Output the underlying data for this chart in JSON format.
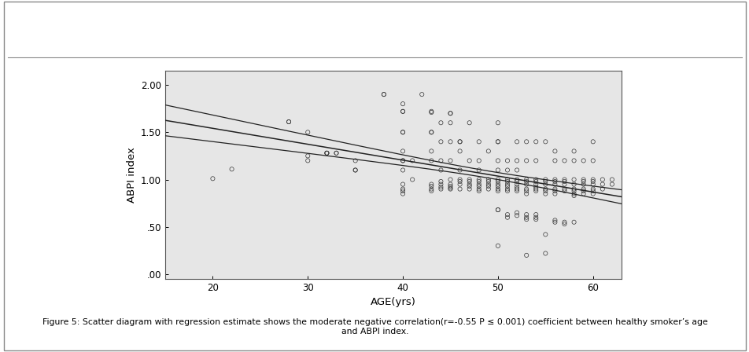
{
  "title": "",
  "xlabel": "AGE(yrs)",
  "ylabel": "ABPI index",
  "xlim": [
    15,
    63
  ],
  "ylim": [
    -0.05,
    2.15
  ],
  "xticks": [
    20,
    30,
    40,
    50,
    60
  ],
  "yticks": [
    0.0,
    0.5,
    1.0,
    1.5,
    2.0
  ],
  "ytick_labels": [
    ".00",
    ".50",
    "1.00",
    "1.50",
    "2.00"
  ],
  "background_color": "#e6e6e6",
  "scatter_color": "none",
  "scatter_edgecolor": "#333333",
  "caption_bold": "Figure 5: ",
  "caption_normal": "Scatter diagram with regression estimate shows the moderate negative correlation(r=-0.55 P ≤ 0.001) coefficient between healthy smoker’s age\nand ABPI index.",
  "scatter_points": [
    [
      20,
      1.01
    ],
    [
      22,
      1.11
    ],
    [
      28,
      1.61
    ],
    [
      28,
      1.61
    ],
    [
      30,
      1.5
    ],
    [
      30,
      1.25
    ],
    [
      30,
      1.2
    ],
    [
      32,
      1.28
    ],
    [
      32,
      1.28
    ],
    [
      32,
      1.28
    ],
    [
      33,
      1.28
    ],
    [
      33,
      1.28
    ],
    [
      35,
      1.2
    ],
    [
      35,
      1.1
    ],
    [
      35,
      1.1
    ],
    [
      38,
      1.9
    ],
    [
      38,
      1.9
    ],
    [
      40,
      1.8
    ],
    [
      40,
      1.72
    ],
    [
      40,
      1.72
    ],
    [
      40,
      1.5
    ],
    [
      40,
      1.5
    ],
    [
      40,
      1.3
    ],
    [
      40,
      1.2
    ],
    [
      40,
      1.2
    ],
    [
      40,
      1.1
    ],
    [
      40,
      0.95
    ],
    [
      40,
      0.9
    ],
    [
      40,
      0.88
    ],
    [
      40,
      0.85
    ],
    [
      41,
      1.2
    ],
    [
      41,
      1.0
    ],
    [
      42,
      1.9
    ],
    [
      43,
      1.72
    ],
    [
      43,
      1.71
    ],
    [
      43,
      1.5
    ],
    [
      43,
      1.5
    ],
    [
      43,
      1.3
    ],
    [
      43,
      1.2
    ],
    [
      43,
      0.95
    ],
    [
      43,
      0.93
    ],
    [
      43,
      0.9
    ],
    [
      43,
      0.88
    ],
    [
      44,
      1.6
    ],
    [
      44,
      1.4
    ],
    [
      44,
      1.2
    ],
    [
      44,
      1.1
    ],
    [
      44,
      0.98
    ],
    [
      44,
      0.95
    ],
    [
      44,
      0.92
    ],
    [
      44,
      0.9
    ],
    [
      45,
      1.7
    ],
    [
      45,
      1.7
    ],
    [
      45,
      1.6
    ],
    [
      45,
      1.4
    ],
    [
      45,
      1.2
    ],
    [
      45,
      1.0
    ],
    [
      45,
      0.95
    ],
    [
      45,
      0.93
    ],
    [
      45,
      0.91
    ],
    [
      45,
      0.9
    ],
    [
      46,
      1.4
    ],
    [
      46,
      1.4
    ],
    [
      46,
      1.3
    ],
    [
      46,
      1.1
    ],
    [
      46,
      1.0
    ],
    [
      46,
      0.98
    ],
    [
      46,
      0.95
    ],
    [
      46,
      0.9
    ],
    [
      47,
      1.6
    ],
    [
      47,
      1.2
    ],
    [
      47,
      1.0
    ],
    [
      47,
      0.98
    ],
    [
      47,
      0.95
    ],
    [
      47,
      0.93
    ],
    [
      47,
      0.9
    ],
    [
      48,
      1.4
    ],
    [
      48,
      1.2
    ],
    [
      48,
      1.1
    ],
    [
      48,
      1.0
    ],
    [
      48,
      0.98
    ],
    [
      48,
      0.95
    ],
    [
      48,
      0.93
    ],
    [
      48,
      0.9
    ],
    [
      48,
      0.88
    ],
    [
      49,
      1.3
    ],
    [
      49,
      1.0
    ],
    [
      49,
      0.98
    ],
    [
      49,
      0.95
    ],
    [
      49,
      0.93
    ],
    [
      49,
      0.9
    ],
    [
      50,
      1.6
    ],
    [
      50,
      1.4
    ],
    [
      50,
      1.4
    ],
    [
      50,
      1.2
    ],
    [
      50,
      1.1
    ],
    [
      50,
      1.0
    ],
    [
      50,
      0.98
    ],
    [
      50,
      0.95
    ],
    [
      50,
      0.93
    ],
    [
      50,
      0.9
    ],
    [
      50,
      0.88
    ],
    [
      50,
      0.68
    ],
    [
      50,
      0.68
    ],
    [
      51,
      1.2
    ],
    [
      51,
      1.1
    ],
    [
      51,
      1.0
    ],
    [
      51,
      0.98
    ],
    [
      51,
      0.95
    ],
    [
      51,
      0.93
    ],
    [
      51,
      0.9
    ],
    [
      51,
      0.88
    ],
    [
      51,
      0.63
    ],
    [
      51,
      0.6
    ],
    [
      52,
      1.4
    ],
    [
      52,
      1.2
    ],
    [
      52,
      1.1
    ],
    [
      52,
      1.0
    ],
    [
      52,
      0.98
    ],
    [
      52,
      0.95
    ],
    [
      52,
      0.92
    ],
    [
      52,
      0.9
    ],
    [
      52,
      0.88
    ],
    [
      52,
      0.65
    ],
    [
      52,
      0.62
    ],
    [
      53,
      1.4
    ],
    [
      53,
      1.2
    ],
    [
      53,
      1.0
    ],
    [
      53,
      0.98
    ],
    [
      53,
      0.95
    ],
    [
      53,
      0.9
    ],
    [
      53,
      0.88
    ],
    [
      53,
      0.85
    ],
    [
      53,
      0.63
    ],
    [
      53,
      0.6
    ],
    [
      53,
      0.58
    ],
    [
      54,
      1.4
    ],
    [
      54,
      1.2
    ],
    [
      54,
      1.0
    ],
    [
      54,
      0.98
    ],
    [
      54,
      0.95
    ],
    [
      54,
      0.92
    ],
    [
      54,
      0.9
    ],
    [
      54,
      0.88
    ],
    [
      54,
      0.63
    ],
    [
      54,
      0.6
    ],
    [
      54,
      0.58
    ],
    [
      55,
      1.4
    ],
    [
      55,
      1.0
    ],
    [
      55,
      0.98
    ],
    [
      55,
      0.95
    ],
    [
      55,
      0.9
    ],
    [
      55,
      0.88
    ],
    [
      55,
      0.85
    ],
    [
      55,
      0.42
    ],
    [
      56,
      1.3
    ],
    [
      56,
      1.2
    ],
    [
      56,
      1.0
    ],
    [
      56,
      0.98
    ],
    [
      56,
      0.95
    ],
    [
      56,
      0.9
    ],
    [
      56,
      0.88
    ],
    [
      56,
      0.85
    ],
    [
      56,
      0.57
    ],
    [
      56,
      0.55
    ],
    [
      57,
      1.2
    ],
    [
      57,
      1.0
    ],
    [
      57,
      0.98
    ],
    [
      57,
      0.95
    ],
    [
      57,
      0.9
    ],
    [
      57,
      0.88
    ],
    [
      57,
      0.55
    ],
    [
      57,
      0.53
    ],
    [
      58,
      1.3
    ],
    [
      58,
      1.2
    ],
    [
      58,
      1.0
    ],
    [
      58,
      0.95
    ],
    [
      58,
      0.9
    ],
    [
      58,
      0.88
    ],
    [
      58,
      0.85
    ],
    [
      58,
      0.83
    ],
    [
      58,
      0.55
    ],
    [
      59,
      1.2
    ],
    [
      59,
      1.0
    ],
    [
      59,
      0.98
    ],
    [
      59,
      0.95
    ],
    [
      59,
      0.9
    ],
    [
      59,
      0.88
    ],
    [
      59,
      0.85
    ],
    [
      60,
      1.4
    ],
    [
      60,
      1.2
    ],
    [
      60,
      1.0
    ],
    [
      60,
      0.98
    ],
    [
      60,
      0.95
    ],
    [
      60,
      0.9
    ],
    [
      60,
      0.88
    ],
    [
      60,
      0.85
    ],
    [
      61,
      1.0
    ],
    [
      61,
      0.95
    ],
    [
      61,
      0.9
    ],
    [
      62,
      1.0
    ],
    [
      62,
      0.95
    ],
    [
      50,
      0.3
    ],
    [
      55,
      0.22
    ],
    [
      53,
      0.2
    ]
  ]
}
